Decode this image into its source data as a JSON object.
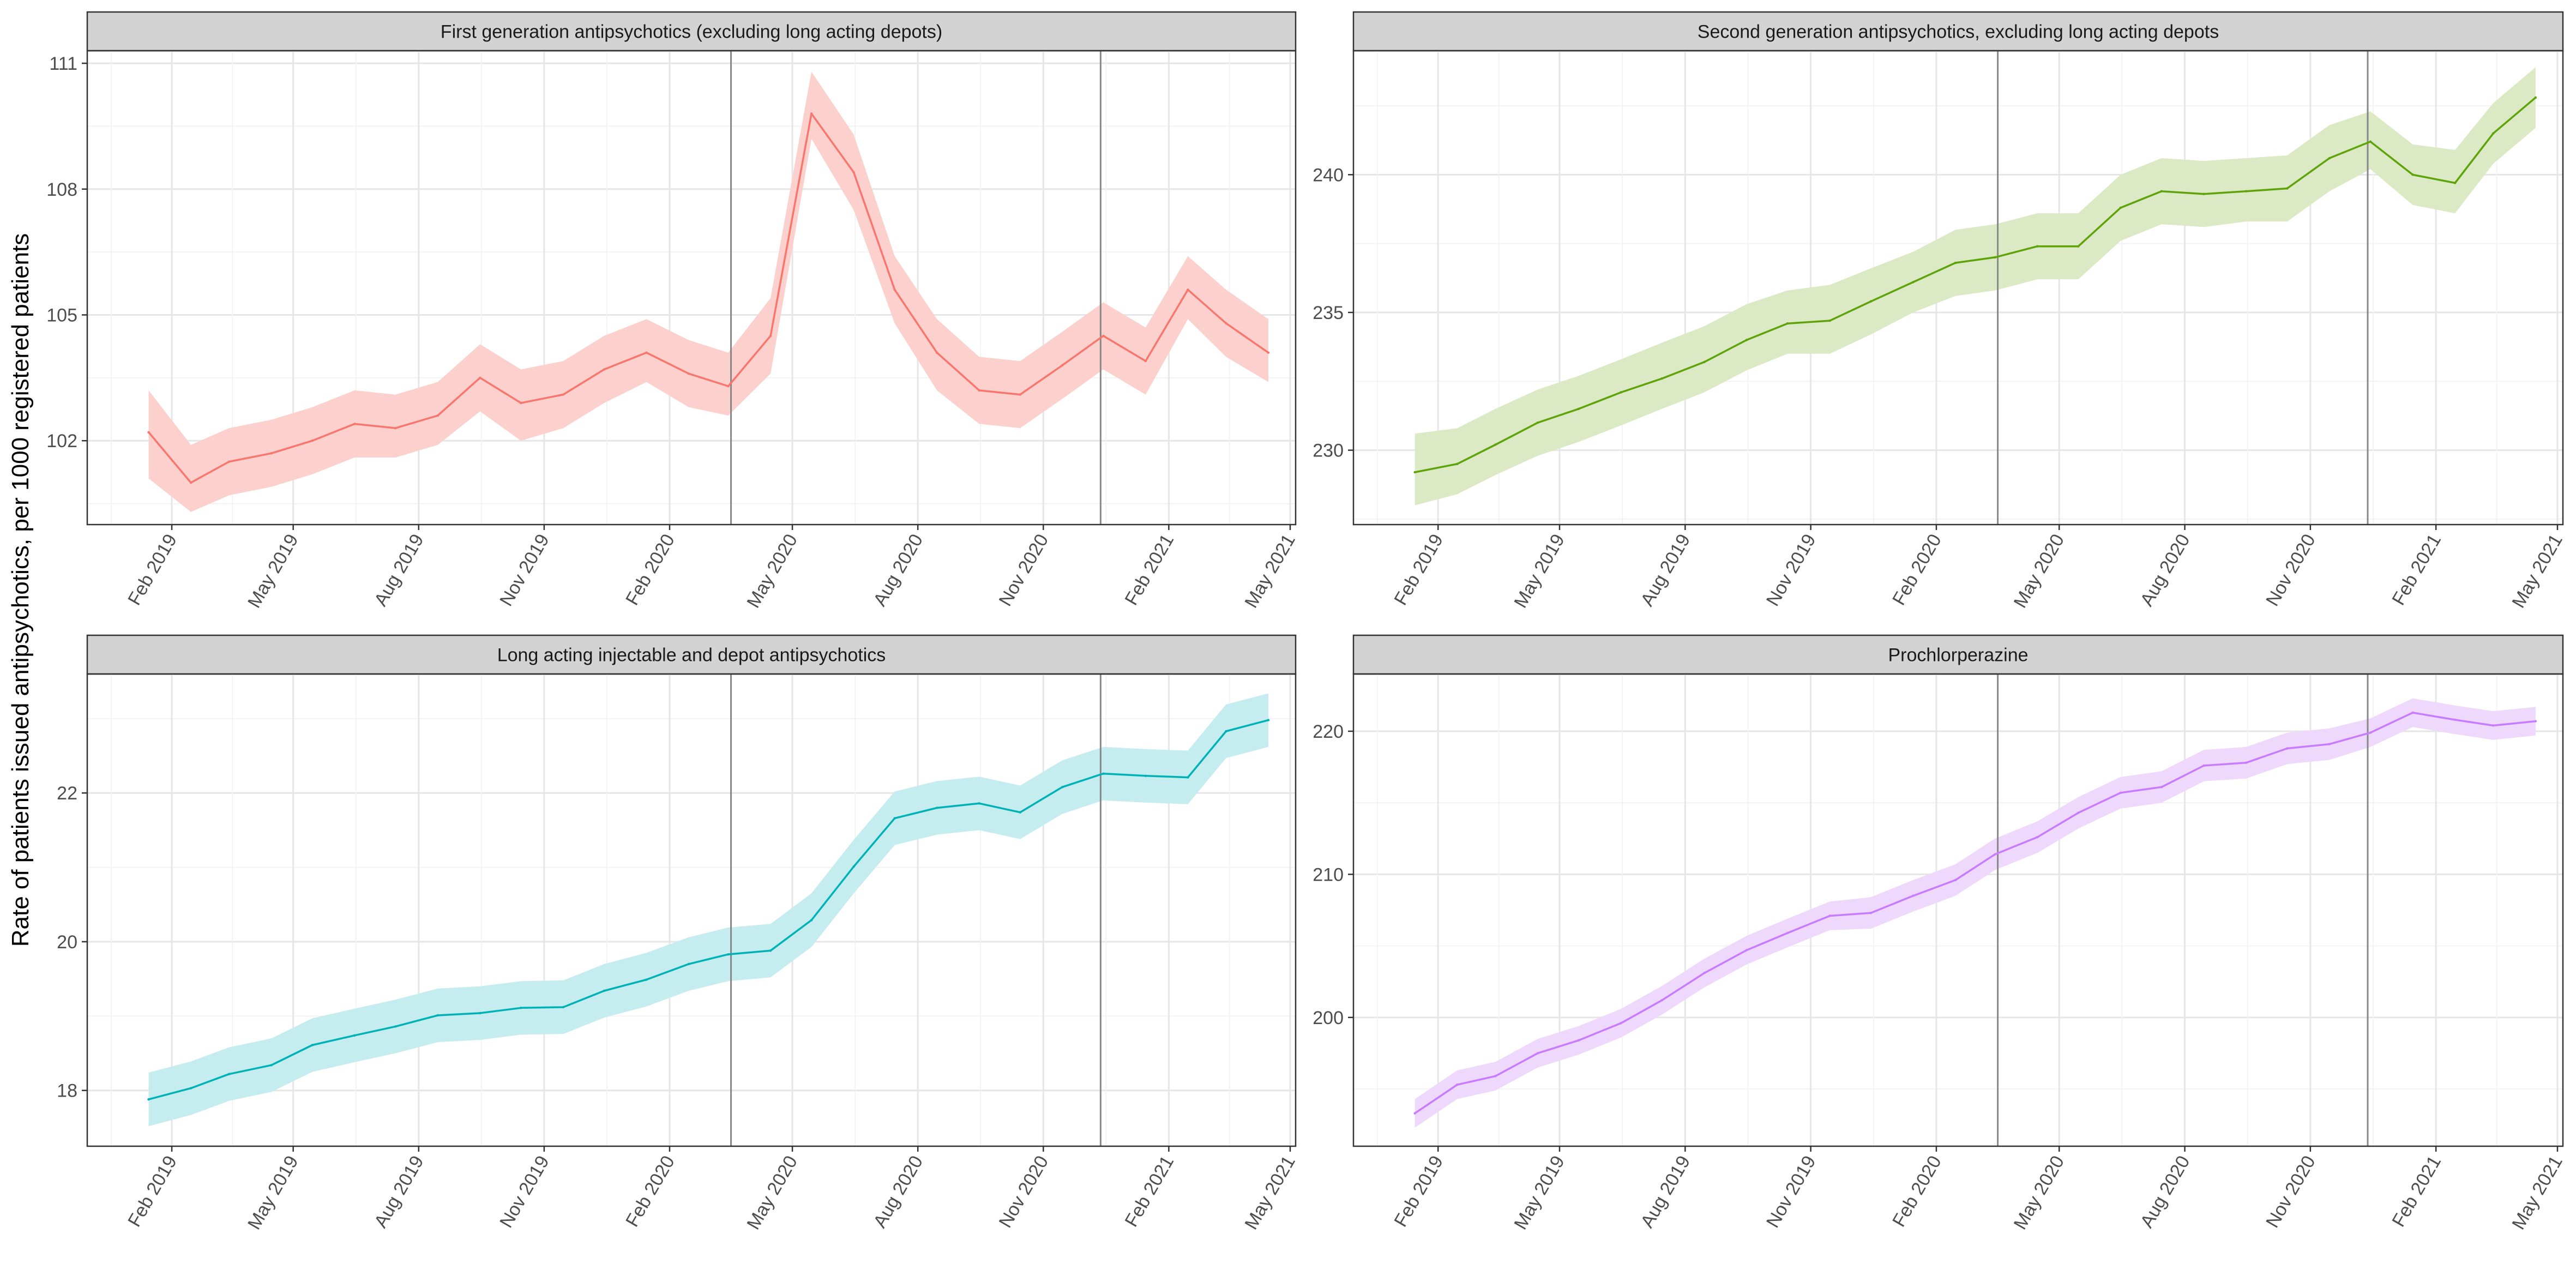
{
  "figure": {
    "ylabel": "Rate of patients issued antipsychotics, per 1000 registered patients"
  },
  "colors": {
    "strip_background": "#d3d3d3",
    "vertical_markers": "#888888"
  },
  "chart_data": [
    {
      "type": "line",
      "title": "First generation antipsychotics (excluding long acting depots)",
      "color": "#f8766d",
      "band_color": "#fcd0cc",
      "x": [
        "2019-01",
        "2019-02",
        "2019-03",
        "2019-04",
        "2019-05",
        "2019-06",
        "2019-07",
        "2019-08",
        "2019-09",
        "2019-10",
        "2019-11",
        "2019-12",
        "2020-01",
        "2020-02",
        "2020-03",
        "2020-04",
        "2020-05",
        "2020-06",
        "2020-07",
        "2020-08",
        "2020-09",
        "2020-10",
        "2020-11",
        "2020-12",
        "2021-01",
        "2021-02",
        "2021-03",
        "2021-04"
      ],
      "values": [
        102.2,
        101.0,
        101.5,
        101.7,
        102.0,
        102.4,
        102.3,
        102.6,
        103.5,
        102.9,
        103.1,
        103.7,
        104.1,
        103.6,
        103.3,
        104.5,
        109.8,
        108.4,
        105.6,
        104.1,
        103.2,
        103.1,
        103.8,
        104.5,
        103.9,
        105.6,
        104.8,
        104.1
      ],
      "lower": [
        101.1,
        100.3,
        100.7,
        100.9,
        101.2,
        101.6,
        101.6,
        101.9,
        102.7,
        102.0,
        102.3,
        102.9,
        103.4,
        102.8,
        102.6,
        103.6,
        109.2,
        107.5,
        104.8,
        103.2,
        102.4,
        102.3,
        103.0,
        103.7,
        103.1,
        104.9,
        104.0,
        103.4
      ],
      "upper": [
        103.2,
        101.9,
        102.3,
        102.5,
        102.8,
        103.2,
        103.1,
        103.4,
        104.3,
        103.7,
        103.9,
        104.5,
        104.9,
        104.4,
        104.1,
        105.4,
        110.8,
        109.3,
        106.4,
        104.9,
        104.0,
        103.9,
        104.6,
        105.3,
        104.7,
        106.4,
        105.6,
        104.9
      ],
      "ylim": [
        100.0,
        111.3
      ],
      "yticks": [
        102,
        105,
        108,
        111
      ],
      "xlim": [
        "2018-12-01",
        "2021-05-05"
      ],
      "xtick_labels": [
        "Feb 2019",
        "May 2019",
        "Aug 2019",
        "Nov 2019",
        "Feb 2020",
        "May 2020",
        "Aug 2020",
        "Nov 2020",
        "Feb 2021",
        "May 2021"
      ],
      "xtick_dates": [
        "2019-02-01",
        "2019-05-01",
        "2019-08-01",
        "2019-11-01",
        "2020-02-01",
        "2020-05-01",
        "2020-08-01",
        "2020-11-01",
        "2021-02-01",
        "2021-05-01"
      ],
      "vlines": [
        "2020-03-17",
        "2020-12-13"
      ],
      "grid": true
    },
    {
      "type": "line",
      "title": "Second generation antipsychotics, excluding long acting depots",
      "color": "#5fa30a",
      "band_color": "#dbe9c4",
      "x": [
        "2019-01",
        "2019-02",
        "2019-03",
        "2019-04",
        "2019-05",
        "2019-06",
        "2019-07",
        "2019-08",
        "2019-09",
        "2019-10",
        "2019-11",
        "2019-12",
        "2020-01",
        "2020-02",
        "2020-03",
        "2020-04",
        "2020-05",
        "2020-06",
        "2020-07",
        "2020-08",
        "2020-09",
        "2020-10",
        "2020-11",
        "2020-12",
        "2021-01",
        "2021-02",
        "2021-03",
        "2021-04"
      ],
      "values": [
        229.2,
        229.5,
        230.2,
        231.0,
        231.5,
        232.1,
        232.6,
        233.2,
        234.0,
        234.6,
        234.7,
        235.4,
        236.1,
        236.8,
        237.0,
        237.4,
        237.4,
        238.8,
        239.4,
        239.3,
        239.4,
        239.5,
        240.6,
        241.2,
        240.0,
        239.7,
        241.5,
        242.8
      ],
      "lower": [
        228.0,
        228.4,
        229.1,
        229.8,
        230.3,
        230.9,
        231.5,
        232.1,
        232.9,
        233.5,
        233.5,
        234.2,
        235.0,
        235.6,
        235.8,
        236.2,
        236.2,
        237.6,
        238.2,
        238.1,
        238.3,
        238.3,
        239.4,
        240.2,
        238.9,
        238.6,
        240.4,
        241.7
      ],
      "upper": [
        230.6,
        230.8,
        231.5,
        232.2,
        232.7,
        233.3,
        233.9,
        234.5,
        235.3,
        235.8,
        236.0,
        236.6,
        237.2,
        238.0,
        238.2,
        238.6,
        238.6,
        240.0,
        240.6,
        240.5,
        240.6,
        240.7,
        241.8,
        242.3,
        241.1,
        240.9,
        242.6,
        243.9
      ],
      "ylim": [
        227.3,
        244.5
      ],
      "yticks": [
        230,
        235,
        240
      ],
      "xlim": [
        "2018-12-01",
        "2021-05-05"
      ],
      "xtick_labels": [
        "Feb 2019",
        "May 2019",
        "Aug 2019",
        "Nov 2019",
        "Feb 2020",
        "May 2020",
        "Aug 2020",
        "Nov 2020",
        "Feb 2021",
        "May 2021"
      ],
      "xtick_dates": [
        "2019-02-01",
        "2019-05-01",
        "2019-08-01",
        "2019-11-01",
        "2020-02-01",
        "2020-05-01",
        "2020-08-01",
        "2020-11-01",
        "2021-02-01",
        "2021-05-01"
      ],
      "vlines": [
        "2020-03-17",
        "2020-12-13"
      ],
      "grid": true
    },
    {
      "type": "line",
      "title": "Long acting injectable and depot antipsychotics",
      "color": "#00b2b6",
      "band_color": "#c5ecee",
      "x": [
        "2019-01",
        "2019-02",
        "2019-03",
        "2019-04",
        "2019-05",
        "2019-06",
        "2019-07",
        "2019-08",
        "2019-09",
        "2019-10",
        "2019-11",
        "2019-12",
        "2020-01",
        "2020-02",
        "2020-03",
        "2020-04",
        "2020-05",
        "2020-06",
        "2020-07",
        "2020-08",
        "2020-09",
        "2020-10",
        "2020-11",
        "2020-12",
        "2021-01",
        "2021-02",
        "2021-03",
        "2021-04"
      ],
      "values": [
        17.88,
        18.03,
        18.22,
        18.34,
        18.61,
        18.74,
        18.86,
        19.01,
        19.04,
        19.11,
        19.12,
        19.34,
        19.49,
        19.7,
        19.83,
        19.88,
        20.29,
        21.01,
        21.66,
        21.8,
        21.86,
        21.74,
        22.08,
        22.26,
        22.23,
        22.21,
        22.83,
        22.98
      ],
      "lower": [
        17.52,
        17.67,
        17.86,
        17.98,
        18.25,
        18.38,
        18.5,
        18.65,
        18.68,
        18.75,
        18.76,
        18.98,
        19.13,
        19.34,
        19.47,
        19.52,
        19.93,
        20.65,
        21.3,
        21.44,
        21.5,
        21.38,
        21.72,
        21.9,
        21.87,
        21.85,
        22.47,
        22.62
      ],
      "upper": [
        18.24,
        18.39,
        18.58,
        18.7,
        18.97,
        19.1,
        19.22,
        19.37,
        19.4,
        19.47,
        19.48,
        19.7,
        19.85,
        20.06,
        20.19,
        20.24,
        20.65,
        21.37,
        22.02,
        22.16,
        22.22,
        22.1,
        22.44,
        22.62,
        22.59,
        22.57,
        23.19,
        23.34
      ],
      "ylim": [
        17.25,
        23.6
      ],
      "yticks": [
        18,
        20,
        22
      ],
      "xlim": [
        "2018-12-01",
        "2021-05-05"
      ],
      "xtick_labels": [
        "Feb 2019",
        "May 2019",
        "Aug 2019",
        "Nov 2019",
        "Feb 2020",
        "May 2020",
        "Aug 2020",
        "Nov 2020",
        "Feb 2021",
        "May 2021"
      ],
      "xtick_dates": [
        "2019-02-01",
        "2019-05-01",
        "2019-08-01",
        "2019-11-01",
        "2020-02-01",
        "2020-05-01",
        "2020-08-01",
        "2020-11-01",
        "2021-02-01",
        "2021-05-01"
      ],
      "vlines": [
        "2020-03-17",
        "2020-12-13"
      ],
      "grid": true
    },
    {
      "type": "line",
      "title": "Prochlorperazine",
      "color": "#c77cff",
      "band_color": "#eed8fb",
      "x": [
        "2019-01",
        "2019-02",
        "2019-03",
        "2019-04",
        "2019-05",
        "2019-06",
        "2019-07",
        "2019-08",
        "2019-09",
        "2019-10",
        "2019-11",
        "2019-12",
        "2020-01",
        "2020-02",
        "2020-03",
        "2020-04",
        "2020-05",
        "2020-06",
        "2020-07",
        "2020-08",
        "2020-09",
        "2020-10",
        "2020-11",
        "2020-12",
        "2021-01",
        "2021-02",
        "2021-03",
        "2021-04"
      ],
      "values": [
        193.3,
        195.3,
        195.9,
        197.5,
        198.4,
        199.6,
        201.2,
        203.1,
        204.7,
        205.9,
        207.1,
        207.3,
        208.5,
        209.6,
        211.4,
        212.6,
        214.3,
        215.7,
        216.1,
        217.6,
        217.8,
        218.8,
        219.1,
        219.9,
        221.3,
        220.8,
        220.4,
        220.7
      ],
      "lower": [
        192.3,
        194.3,
        194.9,
        196.5,
        197.4,
        198.6,
        200.2,
        202.1,
        203.7,
        204.9,
        206.1,
        206.2,
        207.4,
        208.5,
        210.3,
        211.5,
        213.2,
        214.6,
        215.0,
        216.5,
        216.7,
        217.7,
        218.0,
        218.9,
        220.3,
        219.8,
        219.4,
        219.7
      ],
      "upper": [
        194.3,
        196.3,
        196.9,
        198.5,
        199.4,
        200.6,
        202.2,
        204.1,
        205.7,
        206.9,
        208.1,
        208.4,
        209.6,
        210.7,
        212.5,
        213.7,
        215.4,
        216.8,
        217.2,
        218.7,
        218.9,
        219.9,
        220.2,
        220.9,
        222.3,
        221.8,
        221.4,
        221.7
      ],
      "ylim": [
        191.0,
        224.0
      ],
      "yticks": [
        200,
        210,
        220
      ],
      "xlim": [
        "2018-12-01",
        "2021-05-05"
      ],
      "xtick_labels": [
        "Feb 2019",
        "May 2019",
        "Aug 2019",
        "Nov 2019",
        "Feb 2020",
        "May 2020",
        "Aug 2020",
        "Nov 2020",
        "Feb 2021",
        "May 2021"
      ],
      "xtick_dates": [
        "2019-02-01",
        "2019-05-01",
        "2019-08-01",
        "2019-11-01",
        "2020-02-01",
        "2020-05-01",
        "2020-08-01",
        "2020-11-01",
        "2021-02-01",
        "2021-05-01"
      ],
      "vlines": [
        "2020-03-17",
        "2020-12-13"
      ],
      "grid": true
    }
  ]
}
